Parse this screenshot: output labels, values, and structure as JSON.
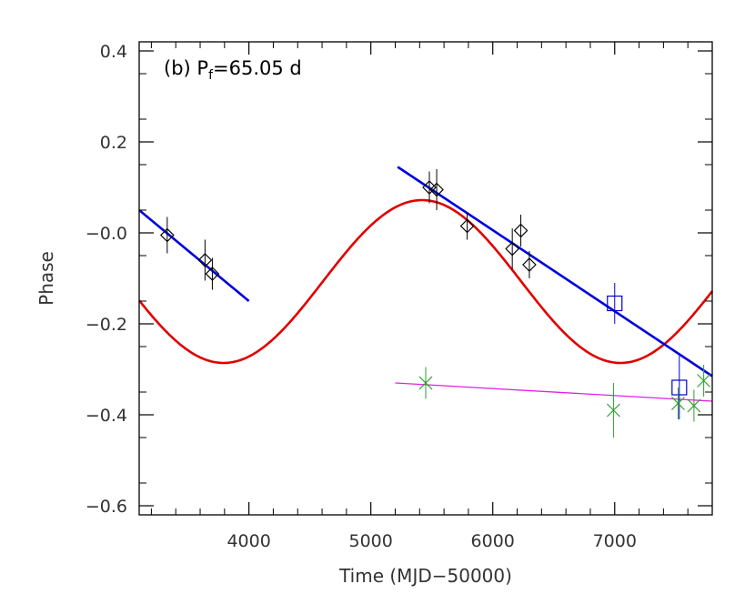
{
  "chart_data": {
    "type": "scatter",
    "title": "",
    "xlabel": "Time (MJD−50000)",
    "ylabel": "Phase",
    "xlim": [
      3100,
      7800
    ],
    "ylim": [
      -0.62,
      0.42
    ],
    "grid": false,
    "x_ticks": [
      4000,
      5000,
      6000,
      7000
    ],
    "x_tick_labels": [
      "4000",
      "5000",
      "6000",
      "7000"
    ],
    "y_ticks": [
      0.4,
      0.2,
      0.0,
      -0.2,
      -0.4,
      -0.6
    ],
    "y_tick_labels": [
      "0.4",
      "0.2",
      "−0.0",
      "−0.2",
      "−0.4",
      "−0.6"
    ],
    "annotation": {
      "prefix": "(b) P",
      "subscript": "f",
      "suffix": "=65.05 d"
    },
    "colors": {
      "diamonds": "#000000",
      "squares": "#0000cc",
      "crosses": "#2e9e2e",
      "sinusoid": "#e00000",
      "linear_fit": "#0000dd",
      "magenta_fit": "#e020e0"
    },
    "series": [
      {
        "marker": "diamond",
        "points": [
          {
            "x": 3330,
            "y": -0.005,
            "err": 0.04
          },
          {
            "x": 3640,
            "y": -0.06,
            "err": 0.045
          },
          {
            "x": 3700,
            "y": -0.09,
            "err": 0.035
          },
          {
            "x": 5480,
            "y": 0.1,
            "err": 0.035
          },
          {
            "x": 5540,
            "y": 0.095,
            "err": 0.045
          },
          {
            "x": 5790,
            "y": 0.015,
            "err": 0.03
          },
          {
            "x": 6160,
            "y": -0.035,
            "err": 0.045
          },
          {
            "x": 6230,
            "y": 0.005,
            "err": 0.035
          },
          {
            "x": 6300,
            "y": -0.07,
            "err": 0.03
          }
        ]
      },
      {
        "marker": "square",
        "points": [
          {
            "x": 7000,
            "y": -0.155,
            "err": 0.045
          },
          {
            "x": 7530,
            "y": -0.34,
            "err": 0.07
          }
        ]
      },
      {
        "marker": "cross",
        "points": [
          {
            "x": 5450,
            "y": -0.33,
            "err": 0.035
          },
          {
            "x": 6990,
            "y": -0.39,
            "err": 0.06
          },
          {
            "x": 7520,
            "y": -0.375,
            "err": 0.035
          },
          {
            "x": 7650,
            "y": -0.38,
            "err": 0.035
          },
          {
            "x": 7730,
            "y": -0.325,
            "err": 0.035
          }
        ]
      }
    ],
    "fits": {
      "sinusoid": {
        "center": -0.107,
        "amplitude": 0.179,
        "period": 3255,
        "peak_x": 5420,
        "x_range": [
          3100,
          7800
        ]
      },
      "linear_early": {
        "x": [
          3100,
          4000
        ],
        "y": [
          0.05,
          -0.15
        ]
      },
      "linear_late": {
        "x": [
          5220,
          7800
        ],
        "y": [
          0.145,
          -0.315
        ]
      },
      "magenta": {
        "x": [
          5200,
          7800
        ],
        "y": [
          -0.33,
          -0.37
        ]
      }
    }
  }
}
